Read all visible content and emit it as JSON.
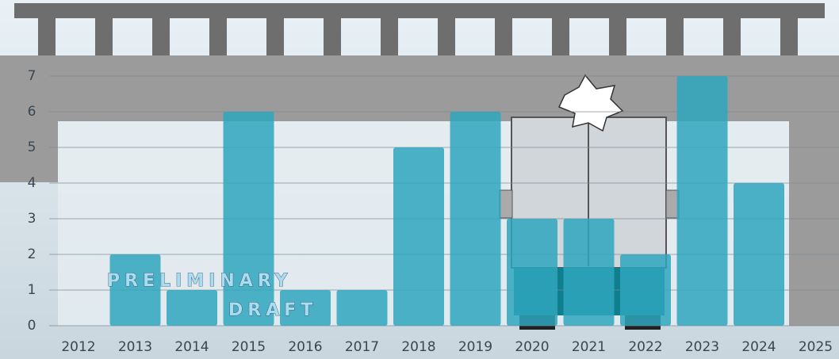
{
  "chart_data": {
    "type": "bar",
    "categories": [
      "2012",
      "2013",
      "2014",
      "2015",
      "2016",
      "2017",
      "2018",
      "2019",
      "2020",
      "2021",
      "2022",
      "2023",
      "2024",
      "2025"
    ],
    "values": [
      0,
      2,
      1,
      6,
      1,
      1,
      5,
      6,
      3,
      3,
      2,
      7,
      4,
      0
    ],
    "color": "#2ea6bd",
    "ylim": [
      0,
      7
    ],
    "yticks": [
      0,
      1,
      2,
      3,
      4,
      5,
      6,
      7
    ],
    "grid": true,
    "annotations": [
      "PRELIMINARY",
      "DRAFT"
    ]
  }
}
